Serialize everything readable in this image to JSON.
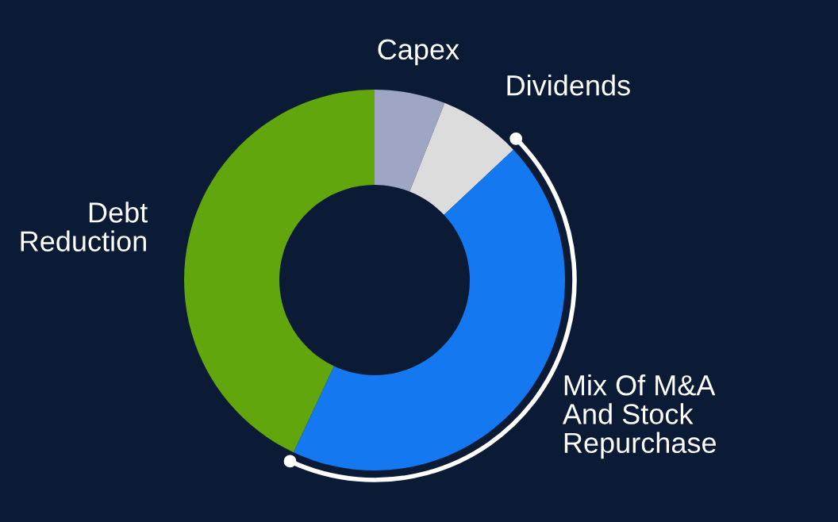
{
  "chart_data": {
    "type": "donut",
    "categories": [
      "Capex",
      "Dividends",
      "Mix Of M&A\nAnd Stock\nRepurchase",
      "Debt\nReduction"
    ],
    "values": [
      6,
      7,
      44,
      43
    ],
    "colors": [
      "#9ea6c4",
      "#dcdcdc",
      "#1478f0",
      "#62a60e"
    ]
  }
}
